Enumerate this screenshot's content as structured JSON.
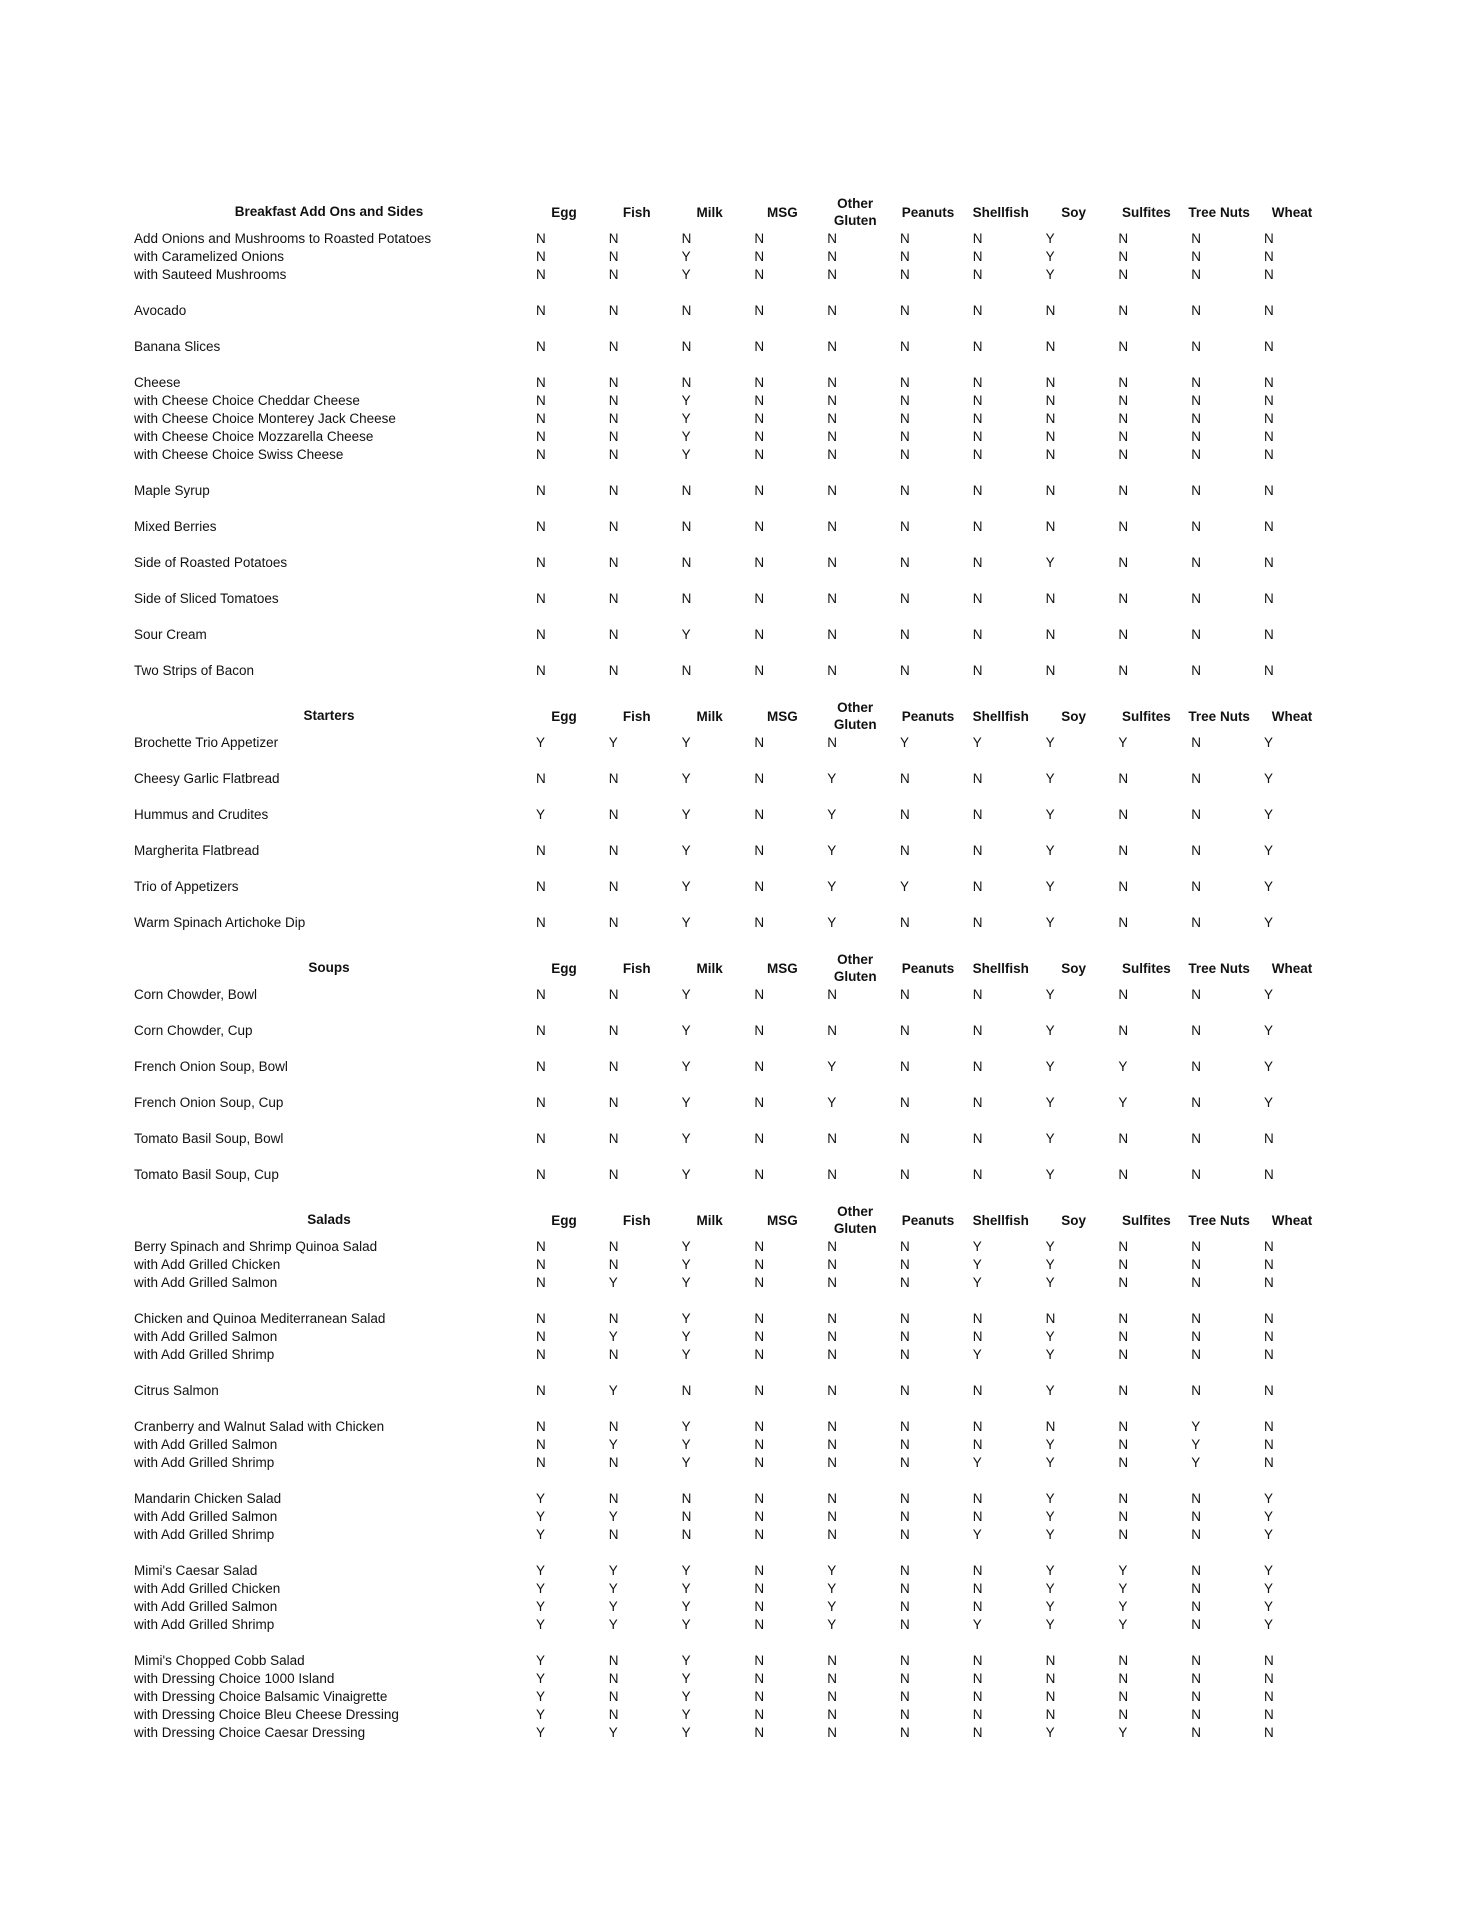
{
  "columns": [
    "Egg",
    "Fish",
    "Milk",
    "MSG",
    "Other Gluten",
    "Peanuts",
    "Shellfish",
    "Soy",
    "Sulfites",
    "Tree Nuts",
    "Wheat"
  ],
  "sections": [
    {
      "title": "Breakfast Add Ons and Sides",
      "groups": [
        [
          [
            "Add Onions and Mushrooms to Roasted Potatoes",
            "NNNNNNNYNNN"
          ],
          [
            "with Caramelized Onions",
            "NNYNNNNYNNN"
          ],
          [
            "with Sauteed Mushrooms",
            "NNYNNNNYNNN"
          ]
        ],
        [
          [
            "Avocado",
            "NNNNNNNNNNN"
          ]
        ],
        [
          [
            "Banana Slices",
            "NNNNNNNNNNN"
          ]
        ],
        [
          [
            "Cheese",
            "NNNNNNNNNNN"
          ],
          [
            "with Cheese Choice Cheddar Cheese",
            "NNYNNNNNNNN"
          ],
          [
            "with Cheese Choice Monterey Jack Cheese",
            "NNYNNNNNNNN"
          ],
          [
            "with Cheese Choice Mozzarella Cheese",
            "NNYNNNNNNNN"
          ],
          [
            "with Cheese Choice Swiss Cheese",
            "NNYNNNNNNNN"
          ]
        ],
        [
          [
            "Maple Syrup",
            "NNNNNNNNNNN"
          ]
        ],
        [
          [
            "Mixed Berries",
            "NNNNNNNNNNN"
          ]
        ],
        [
          [
            "Side of Roasted Potatoes",
            "NNNNNNNYNNN"
          ]
        ],
        [
          [
            "Side of Sliced Tomatoes",
            "NNNNNNNNNNN"
          ]
        ],
        [
          [
            "Sour Cream",
            "NNYNNNNNNNN"
          ]
        ],
        [
          [
            "Two Strips of Bacon",
            "NNNNNNNNNNN"
          ]
        ]
      ]
    },
    {
      "title": "Starters",
      "groups": [
        [
          [
            "Brochette Trio Appetizer",
            "YYYNNYYYYNY"
          ]
        ],
        [
          [
            "Cheesy Garlic Flatbread",
            "NNYNYNNYNNY"
          ]
        ],
        [
          [
            "Hummus and Crudites",
            "YNYNYNNYNNY"
          ]
        ],
        [
          [
            "Margherita Flatbread",
            "NNYNYNNYNNY"
          ]
        ],
        [
          [
            "Trio of Appetizers",
            "NNYNYYNYNNY"
          ]
        ],
        [
          [
            "Warm Spinach Artichoke Dip",
            "NNYNYNNYNNY"
          ]
        ]
      ]
    },
    {
      "title": "Soups",
      "groups": [
        [
          [
            "Corn Chowder, Bowl",
            "NNYNNNNYNNY"
          ]
        ],
        [
          [
            "Corn Chowder, Cup",
            "NNYNNNNYNNY"
          ]
        ],
        [
          [
            "French Onion Soup, Bowl",
            "NNYNYNNYYNY"
          ]
        ],
        [
          [
            "French Onion Soup, Cup",
            "NNYNYNNYYNY"
          ]
        ],
        [
          [
            "Tomato Basil Soup, Bowl",
            "NNYNNNNYNNN"
          ]
        ],
        [
          [
            "Tomato Basil Soup, Cup",
            "NNYNNNNYNNN"
          ]
        ]
      ]
    },
    {
      "title": "Salads",
      "groups": [
        [
          [
            "Berry Spinach and Shrimp Quinoa Salad",
            "NNYNNNYYNNN"
          ],
          [
            "with Add Grilled Chicken",
            "NNYNNNYYNNN"
          ],
          [
            "with Add Grilled Salmon",
            "NYYNNNYYNNN"
          ]
        ],
        [
          [
            "Chicken and Quinoa Mediterranean Salad",
            "NNYNNNNNNNN"
          ],
          [
            "with Add Grilled Salmon",
            "NYYNNNNYNNN"
          ],
          [
            "with Add Grilled Shrimp",
            "NNYNNNYYNNN"
          ]
        ],
        [
          [
            "Citrus Salmon",
            "NYNNNNNYNNN"
          ]
        ],
        [
          [
            "Cranberry and Walnut Salad with Chicken",
            "NNYNNNNNNYN"
          ],
          [
            "with Add Grilled Salmon",
            "NYYNNNNYNYN"
          ],
          [
            "with Add Grilled Shrimp",
            "NNYNNNYYNYN"
          ]
        ],
        [
          [
            "Mandarin Chicken Salad",
            "YNNNNNNYNNY"
          ],
          [
            "with Add Grilled Salmon",
            "YYNNNNNYNNY"
          ],
          [
            "with Add Grilled Shrimp",
            "YNNNNNYYNNY"
          ]
        ],
        [
          [
            "Mimi's Caesar Salad",
            "YYYNYNNYYNY"
          ],
          [
            "with Add Grilled Chicken",
            "YYYNYNNYYNY"
          ],
          [
            "with Add Grilled Salmon",
            "YYYNYNNYYNY"
          ],
          [
            "with Add Grilled Shrimp",
            "YYYNYNYYYNY"
          ]
        ],
        [
          [
            "Mimi's Chopped Cobb Salad",
            "YNYNNNNNNNN"
          ],
          [
            "with Dressing Choice 1000 Island",
            "YNYNNNNNNNN"
          ],
          [
            "with Dressing Choice Balsamic Vinaigrette",
            "YNYNNNNNNNN"
          ],
          [
            "with Dressing Choice Bleu Cheese Dressing",
            "YNYNNNNNNNN"
          ],
          [
            "with Dressing Choice Caesar Dressing",
            "YYYNNNNYYNN"
          ]
        ]
      ]
    }
  ]
}
